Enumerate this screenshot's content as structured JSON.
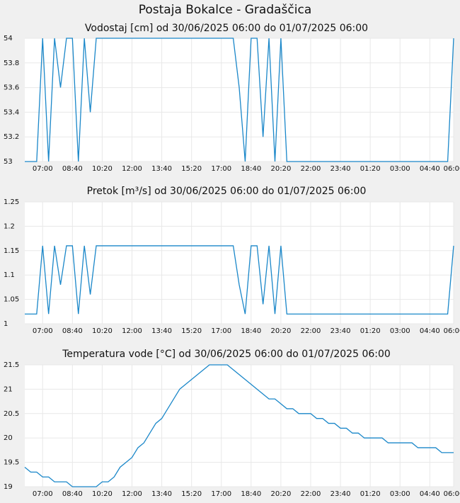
{
  "title": "Postaja Bokalce - Gradaščica",
  "chart_data": [
    {
      "type": "line",
      "title": "Vodostaj [cm] od 30/06/2025 06:00 do 01/07/2025 06:00",
      "categories": [
        null,
        null,
        null,
        "07:00",
        null,
        null,
        null,
        null,
        "08:40",
        null,
        null,
        null,
        null,
        "10:20",
        null,
        null,
        null,
        null,
        "12:00",
        null,
        null,
        null,
        null,
        "13:40",
        null,
        null,
        null,
        null,
        "15:20",
        null,
        null,
        null,
        null,
        "17:00",
        null,
        null,
        null,
        null,
        "18:40",
        null,
        null,
        null,
        null,
        "20:20",
        null,
        null,
        null,
        null,
        "22:00",
        null,
        null,
        null,
        null,
        "23:40",
        null,
        null,
        null,
        null,
        "01:20",
        null,
        null,
        null,
        null,
        "03:00",
        null,
        null,
        null,
        null,
        "04:40",
        null,
        null,
        null,
        "06:00"
      ],
      "series": [
        {
          "color": "#1a87c9",
          "values": [
            53,
            53,
            53,
            54,
            53,
            54,
            53.6,
            54,
            54,
            53,
            54,
            53.4,
            54,
            54,
            54,
            54,
            54,
            54,
            54,
            54,
            54,
            54,
            54,
            54,
            54,
            54,
            54,
            54,
            54,
            54,
            54,
            54,
            54,
            54,
            54,
            54,
            53.6,
            53,
            54,
            54,
            53.2,
            54,
            53,
            54,
            53,
            53,
            53,
            53,
            53,
            53,
            53,
            53,
            53,
            53,
            53,
            53,
            53,
            53,
            53,
            53,
            53,
            53,
            53,
            53,
            53,
            53,
            53,
            53,
            53,
            53,
            53,
            53,
            54
          ]
        }
      ],
      "ylim": [
        53,
        54
      ],
      "yticks": [
        53,
        53.2,
        53.4,
        53.6,
        53.8,
        54
      ],
      "grid": true
    },
    {
      "type": "line",
      "title": "Pretok [m³/s] od 30/06/2025 06:00 do 01/07/2025 06:00",
      "categories": [
        null,
        null,
        null,
        "07:00",
        null,
        null,
        null,
        null,
        "08:40",
        null,
        null,
        null,
        null,
        "10:20",
        null,
        null,
        null,
        null,
        "12:00",
        null,
        null,
        null,
        null,
        "13:40",
        null,
        null,
        null,
        null,
        "15:20",
        null,
        null,
        null,
        null,
        "17:00",
        null,
        null,
        null,
        null,
        "18:40",
        null,
        null,
        null,
        null,
        "20:20",
        null,
        null,
        null,
        null,
        "22:00",
        null,
        null,
        null,
        null,
        "23:40",
        null,
        null,
        null,
        null,
        "01:20",
        null,
        null,
        null,
        null,
        "03:00",
        null,
        null,
        null,
        null,
        "04:40",
        null,
        null,
        null,
        "06:00"
      ],
      "series": [
        {
          "color": "#1a87c9",
          "values": [
            1.02,
            1.02,
            1.02,
            1.16,
            1.02,
            1.16,
            1.08,
            1.16,
            1.16,
            1.02,
            1.16,
            1.06,
            1.16,
            1.16,
            1.16,
            1.16,
            1.16,
            1.16,
            1.16,
            1.16,
            1.16,
            1.16,
            1.16,
            1.16,
            1.16,
            1.16,
            1.16,
            1.16,
            1.16,
            1.16,
            1.16,
            1.16,
            1.16,
            1.16,
            1.16,
            1.16,
            1.08,
            1.02,
            1.16,
            1.16,
            1.04,
            1.16,
            1.02,
            1.16,
            1.02,
            1.02,
            1.02,
            1.02,
            1.02,
            1.02,
            1.02,
            1.02,
            1.02,
            1.02,
            1.02,
            1.02,
            1.02,
            1.02,
            1.02,
            1.02,
            1.02,
            1.02,
            1.02,
            1.02,
            1.02,
            1.02,
            1.02,
            1.02,
            1.02,
            1.02,
            1.02,
            1.02,
            1.16
          ]
        }
      ],
      "ylim": [
        1,
        1.25
      ],
      "yticks": [
        1,
        1.05,
        1.1,
        1.15,
        1.2,
        1.25
      ],
      "grid": true
    },
    {
      "type": "line",
      "title": "Temperatura vode [°C] od 30/06/2025 06:00 do 01/07/2025 06:00",
      "categories": [
        null,
        null,
        null,
        "07:00",
        null,
        null,
        null,
        null,
        "08:40",
        null,
        null,
        null,
        null,
        "10:20",
        null,
        null,
        null,
        null,
        "12:00",
        null,
        null,
        null,
        null,
        "13:40",
        null,
        null,
        null,
        null,
        "15:20",
        null,
        null,
        null,
        null,
        "17:00",
        null,
        null,
        null,
        null,
        "18:40",
        null,
        null,
        null,
        null,
        "20:20",
        null,
        null,
        null,
        null,
        "22:00",
        null,
        null,
        null,
        null,
        "23:40",
        null,
        null,
        null,
        null,
        "01:20",
        null,
        null,
        null,
        null,
        "03:00",
        null,
        null,
        null,
        null,
        "04:40",
        null,
        null,
        null,
        "06:00"
      ],
      "series": [
        {
          "color": "#1a87c9",
          "values": [
            19.4,
            19.3,
            19.3,
            19.2,
            19.2,
            19.1,
            19.1,
            19.1,
            19.0,
            19.0,
            19.0,
            19.0,
            19.0,
            19.1,
            19.1,
            19.2,
            19.4,
            19.5,
            19.6,
            19.8,
            19.9,
            20.1,
            20.3,
            20.4,
            20.6,
            20.8,
            21.0,
            21.1,
            21.2,
            21.3,
            21.4,
            21.5,
            21.5,
            21.5,
            21.5,
            21.4,
            21.3,
            21.2,
            21.1,
            21.0,
            20.9,
            20.8,
            20.8,
            20.7,
            20.6,
            20.6,
            20.5,
            20.5,
            20.5,
            20.4,
            20.4,
            20.3,
            20.3,
            20.2,
            20.2,
            20.1,
            20.1,
            20.0,
            20.0,
            20.0,
            20.0,
            19.9,
            19.9,
            19.9,
            19.9,
            19.9,
            19.8,
            19.8,
            19.8,
            19.8,
            19.7,
            19.7,
            19.7
          ]
        }
      ],
      "ylim": [
        19,
        21.5
      ],
      "yticks": [
        19,
        19.5,
        20,
        20.5,
        21,
        21.5
      ],
      "grid": true
    }
  ]
}
